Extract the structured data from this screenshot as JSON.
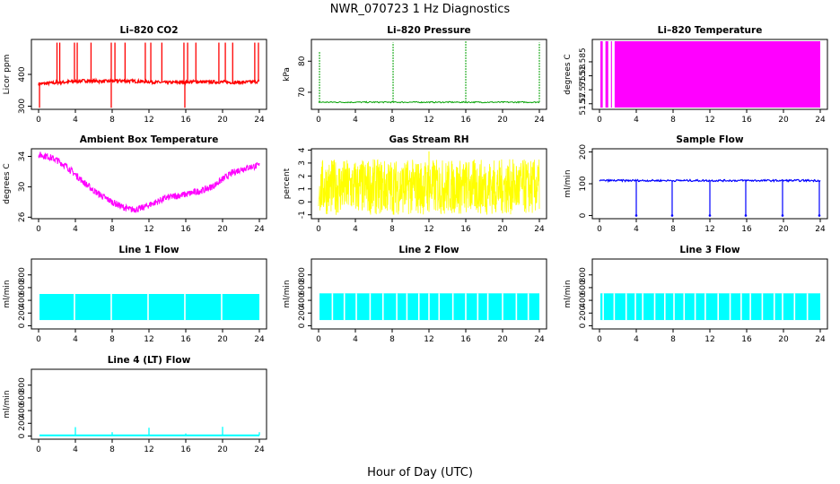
{
  "figure": {
    "title": "NWR_070723  1 Hz Diagnostics",
    "xlabel": "Hour of Day (UTC)"
  },
  "chart_data": [
    {
      "id": "co2",
      "type": "line",
      "title": "Li–820 CO2",
      "ylabel": "Licor ppm",
      "color": "#ff0000",
      "xlim": [
        0,
        24
      ],
      "ylim": [
        290,
        510
      ],
      "yticks": [
        300,
        400
      ],
      "x_ticks": [
        0,
        4,
        8,
        12,
        16,
        20,
        24
      ],
      "series": [
        {
          "baseline": [
            [
              0,
              370
            ],
            [
              1,
              372
            ],
            [
              2,
              374
            ],
            [
              3,
              376
            ],
            [
              4,
              378
            ],
            [
              5,
              380
            ],
            [
              6,
              379
            ],
            [
              7,
              378
            ],
            [
              8,
              379
            ],
            [
              9,
              380
            ],
            [
              10,
              379
            ],
            [
              11,
              378
            ],
            [
              12,
              377
            ],
            [
              13,
              375
            ],
            [
              14,
              374
            ],
            [
              15,
              375
            ],
            [
              16,
              376
            ],
            [
              17,
              377
            ],
            [
              18,
              376
            ],
            [
              19,
              376
            ],
            [
              20,
              376
            ],
            [
              21,
              375
            ],
            [
              22,
              375
            ],
            [
              23,
              376
            ],
            [
              24,
              378
            ]
          ],
          "spikes_up": [
            2.0,
            2.3,
            3.9,
            4.2,
            5.7,
            7.9,
            8.3,
            9.4,
            11.6,
            12.2,
            13.4,
            15.8,
            16.2,
            17.1,
            19.6,
            20.3,
            21.1,
            23.5,
            23.9
          ],
          "spike_top": 500,
          "spikes_down": [
            0.1,
            7.9,
            15.9
          ],
          "spike_bottom": 295
        }
      ]
    },
    {
      "id": "pressure",
      "type": "line",
      "title": "Li–820 Pressure",
      "ylabel": "kPa",
      "color": "#00a000",
      "xlim": [
        0,
        24
      ],
      "ylim": [
        64.5,
        87
      ],
      "yticks": [
        70,
        80
      ],
      "x_ticks": [
        0,
        4,
        8,
        12,
        16,
        20,
        24
      ],
      "series": [
        {
          "baseline_value": 66.8,
          "spikes": [
            [
              0.1,
              83
            ],
            [
              8.1,
              86
            ],
            [
              16.0,
              86.5
            ],
            [
              24.0,
              86
            ]
          ]
        }
      ]
    },
    {
      "id": "licor_temp",
      "type": "area",
      "title": "Li–820 Temperature",
      "ylabel": "degrees C",
      "color": "#ff00ff",
      "xlim": [
        0,
        24
      ],
      "ylim": [
        51.568,
        51.593
      ],
      "yticks": [
        51.57,
        51.575,
        51.58,
        51.585
      ],
      "x_ticks": [
        0,
        4,
        8,
        12,
        16,
        20,
        24
      ],
      "series": [
        {
          "fill_from": 0.1,
          "fill_to": 24.0,
          "gaps": [
            0.5,
            1.1,
            1.5
          ]
        }
      ]
    },
    {
      "id": "box_temp",
      "type": "line",
      "title": "Ambient Box Temperature",
      "ylabel": "degrees C",
      "color": "#ff00ff",
      "xlim": [
        0,
        24
      ],
      "ylim": [
        25.8,
        35
      ],
      "yticks": [
        26,
        30,
        34
      ],
      "x_ticks": [
        0,
        4,
        8,
        12,
        16,
        20,
        24
      ],
      "series": [
        {
          "points": [
            [
              0,
              34.2
            ],
            [
              1,
              34.0
            ],
            [
              2,
              33.5
            ],
            [
              3,
              32.7
            ],
            [
              4,
              31.6
            ],
            [
              5,
              30.5
            ],
            [
              6,
              29.5
            ],
            [
              7,
              28.7
            ],
            [
              8,
              28.0
            ],
            [
              9,
              27.4
            ],
            [
              10,
              27.0
            ],
            [
              11,
              27.1
            ],
            [
              12,
              27.6
            ],
            [
              13,
              28.1
            ],
            [
              14,
              28.6
            ],
            [
              15,
              28.8
            ],
            [
              16,
              29.0
            ],
            [
              17,
              29.3
            ],
            [
              18,
              29.6
            ],
            [
              19,
              30.1
            ],
            [
              20,
              31.0
            ],
            [
              21,
              31.8
            ],
            [
              22,
              32.3
            ],
            [
              23,
              32.6
            ],
            [
              24,
              32.8
            ]
          ],
          "noise": 0.45
        }
      ]
    },
    {
      "id": "rh",
      "type": "line",
      "title": "Gas Stream RH",
      "ylabel": "percent",
      "color": "#ffff00",
      "xlim": [
        0,
        24
      ],
      "ylim": [
        -1.3,
        4.1
      ],
      "yticks": [
        -1,
        0,
        1,
        2,
        3,
        4
      ],
      "x_ticks": [
        0,
        4,
        8,
        12,
        16,
        20,
        24
      ],
      "series": [
        {
          "band_low": -1.0,
          "band_high": 3.3,
          "center": 1.2,
          "outliers": [
            [
              12.0,
              3.9
            ]
          ]
        }
      ]
    },
    {
      "id": "sample_flow",
      "type": "line",
      "title": "Sample Flow",
      "ylabel": "ml/min",
      "color": "#0000ff",
      "xlim": [
        0,
        24
      ],
      "ylim": [
        -10,
        210
      ],
      "yticks": [
        0,
        100,
        200
      ],
      "x_ticks": [
        0,
        4,
        8,
        12,
        16,
        20,
        24
      ],
      "series": [
        {
          "baseline_value": 110,
          "dips": [
            4.0,
            7.9,
            12.0,
            15.9,
            19.9,
            23.9
          ],
          "dip_value": 0
        }
      ]
    },
    {
      "id": "line1",
      "type": "area",
      "title": "Line 1 Flow",
      "ylabel": "ml/min",
      "color": "#00ffff",
      "xlim": [
        0,
        24
      ],
      "ylim": [
        -50,
        1050
      ],
      "yticks": [
        0,
        200,
        400,
        600,
        800
      ],
      "x_ticks": [
        0,
        4,
        8,
        12,
        16,
        20,
        24
      ],
      "series": [
        {
          "band_low": 90,
          "band_high": 500,
          "start": 0.1,
          "end": 24.0,
          "gaps": [
            3.9,
            7.9,
            11.9,
            15.9,
            19.9
          ]
        }
      ]
    },
    {
      "id": "line2",
      "type": "area",
      "title": "Line 2 Flow",
      "ylabel": "ml/min",
      "color": "#00ffff",
      "xlim": [
        0,
        24
      ],
      "ylim": [
        -50,
        1050
      ],
      "yticks": [
        0,
        200,
        400,
        600,
        800
      ],
      "x_ticks": [
        0,
        4,
        8,
        12,
        16,
        20,
        24
      ],
      "series": [
        {
          "band_low": 90,
          "band_high": 510,
          "start": 0.1,
          "end": 24.0,
          "gaps": [
            1.5,
            2.8,
            4.1,
            5.6,
            7.0,
            8.5,
            9.6,
            10.9,
            12.0,
            13.1,
            14.6,
            16.0,
            17.3,
            18.4,
            20.0,
            21.5,
            22.8
          ]
        }
      ]
    },
    {
      "id": "line3",
      "type": "area",
      "title": "Line 3 Flow",
      "ylabel": "ml/min",
      "color": "#00ffff",
      "xlim": [
        0,
        24
      ],
      "ylim": [
        -50,
        1050
      ],
      "yticks": [
        0,
        200,
        400,
        600,
        800
      ],
      "x_ticks": [
        0,
        4,
        8,
        12,
        16,
        20,
        24
      ],
      "series": [
        {
          "band_low": 90,
          "band_high": 510,
          "start": 0.1,
          "end": 24.0,
          "gaps": [
            0.4,
            1.6,
            2.9,
            3.9,
            4.7,
            6.0,
            7.1,
            8.1,
            9.2,
            10.4,
            11.5,
            12.9,
            14.2,
            15.4,
            16.4,
            17.7,
            19.0,
            19.9,
            21.2,
            22.6
          ]
        }
      ]
    },
    {
      "id": "line4",
      "type": "line",
      "title": "Line 4 (LT) Flow",
      "ylabel": "ml/min",
      "color": "#00ffff",
      "xlim": [
        0,
        24
      ],
      "ylim": [
        -50,
        1050
      ],
      "yticks": [
        0,
        200,
        400,
        600,
        800
      ],
      "x_ticks": [
        0,
        4,
        8,
        12,
        16,
        20,
        24
      ],
      "series": [
        {
          "baseline_value": 10,
          "spikes": [
            [
              4.0,
              140
            ],
            [
              8.0,
              60
            ],
            [
              12.0,
              130
            ],
            [
              16.0,
              40
            ],
            [
              20.0,
              145
            ],
            [
              24.0,
              60
            ]
          ]
        }
      ]
    }
  ]
}
